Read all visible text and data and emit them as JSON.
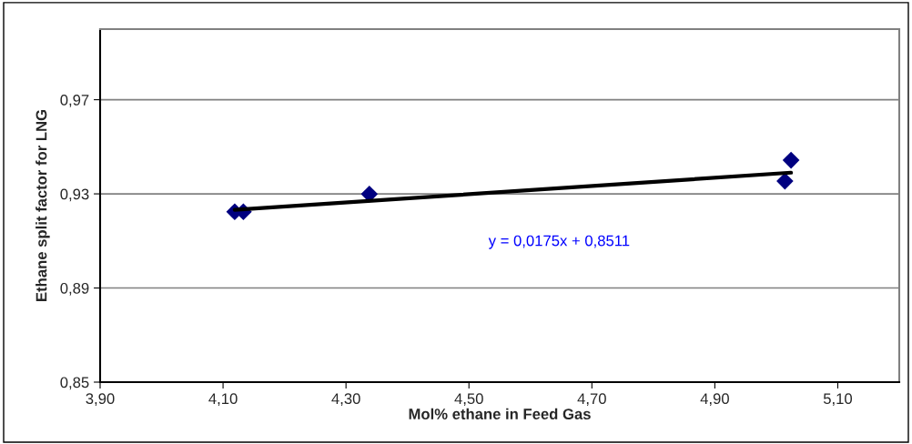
{
  "chart_data": {
    "type": "scatter",
    "xlabel": "Mol% ethane in Feed Gas",
    "ylabel": "Ethane split factor for LNG",
    "x": [
      4.119,
      4.133,
      4.338,
      5.014,
      5.024
    ],
    "series": [
      {
        "color": "#000080",
        "marker": "diamond",
        "values": [
          0.9224,
          0.9224,
          0.9299,
          0.9354,
          0.9443
        ]
      },
      {
        "type": "line",
        "color": "#000000",
        "line_style": "solid",
        "x": [
          4.119,
          5.024
        ],
        "values": [
          0.9232,
          0.939
        ]
      }
    ],
    "annotations": [
      "y = 0,0175x + 0,8511"
    ],
    "xlim": [
      3.9,
      5.2
    ],
    "ylim": [
      0.85,
      1.0
    ],
    "xticks": [
      {
        "value": 3.9,
        "label": "3,90"
      },
      {
        "value": 4.1,
        "label": "4,10"
      },
      {
        "value": 4.3,
        "label": "4,30"
      },
      {
        "value": 4.5,
        "label": "4,50"
      },
      {
        "value": 4.7,
        "label": "4,70"
      },
      {
        "value": 4.9,
        "label": "4,90"
      },
      {
        "value": 5.1,
        "label": "5,10"
      }
    ],
    "yticks": [
      {
        "value": 0.85,
        "label": "0,85"
      },
      {
        "value": 0.89,
        "label": "0,89"
      },
      {
        "value": 0.93,
        "label": "0,93"
      },
      {
        "value": 0.97,
        "label": "0,97"
      }
    ],
    "grid": "y",
    "legend": false
  }
}
